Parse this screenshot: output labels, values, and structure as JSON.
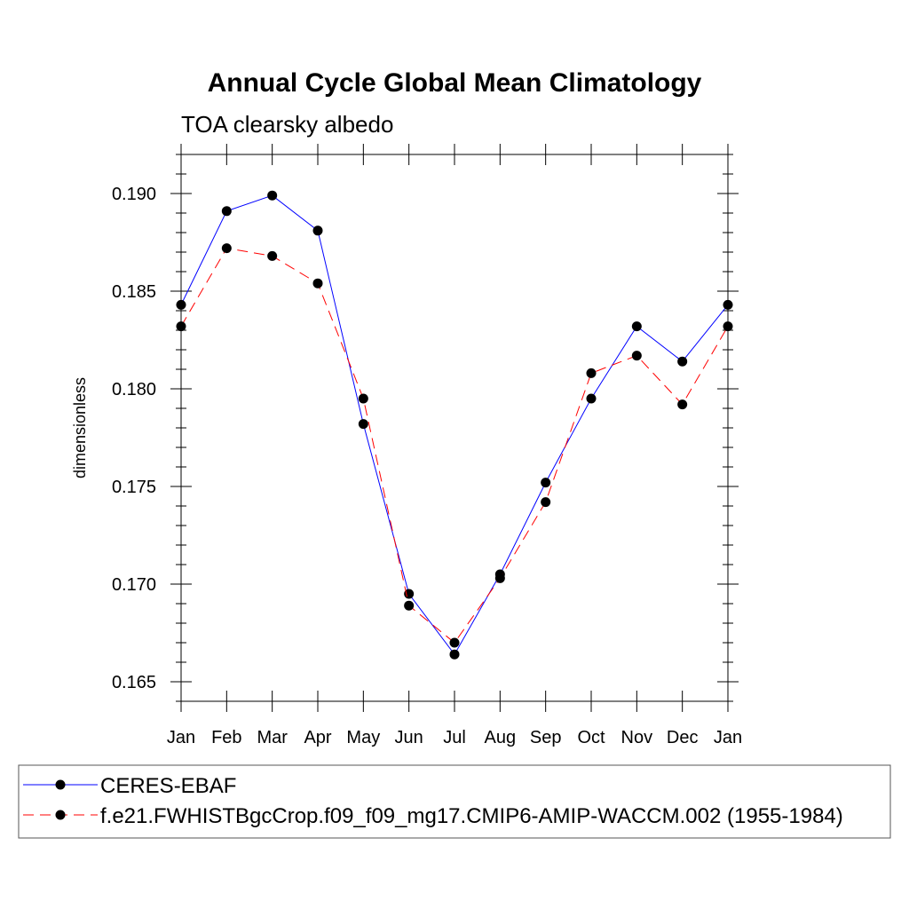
{
  "chart_data": {
    "type": "line",
    "title": "Annual Cycle Global Mean Climatology",
    "subtitle": "TOA clearsky albedo",
    "xlabel": "",
    "ylabel": "dimensionless",
    "categories": [
      "Jan",
      "Feb",
      "Mar",
      "Apr",
      "May",
      "Jun",
      "Jul",
      "Aug",
      "Sep",
      "Oct",
      "Nov",
      "Dec",
      "Jan"
    ],
    "ylim": [
      0.164,
      0.192
    ],
    "yticks": [
      0.165,
      0.17,
      0.175,
      0.18,
      0.185,
      0.19
    ],
    "ytick_labels": [
      "0.165",
      "0.170",
      "0.175",
      "0.180",
      "0.185",
      "0.190"
    ],
    "grid": false,
    "legend_position": "bottom",
    "series": [
      {
        "name": "CERES-EBAF",
        "color": "#0000ff",
        "style": "solid",
        "values": [
          0.1843,
          0.1891,
          0.1899,
          0.1881,
          0.1782,
          0.1695,
          0.1664,
          0.1705,
          0.1752,
          0.1795,
          0.1832,
          0.1814,
          0.1843
        ]
      },
      {
        "name": "f.e21.FWHISTBgcCrop.f09_f09_mg17.CMIP6-AMIP-WACCM.002 (1955-1984)",
        "color": "#ff0000",
        "style": "dashed",
        "values": [
          0.1832,
          0.1872,
          0.1868,
          0.1854,
          0.1795,
          0.1689,
          0.167,
          0.1703,
          0.1742,
          0.1808,
          0.1817,
          0.1792,
          0.1832
        ]
      }
    ]
  }
}
